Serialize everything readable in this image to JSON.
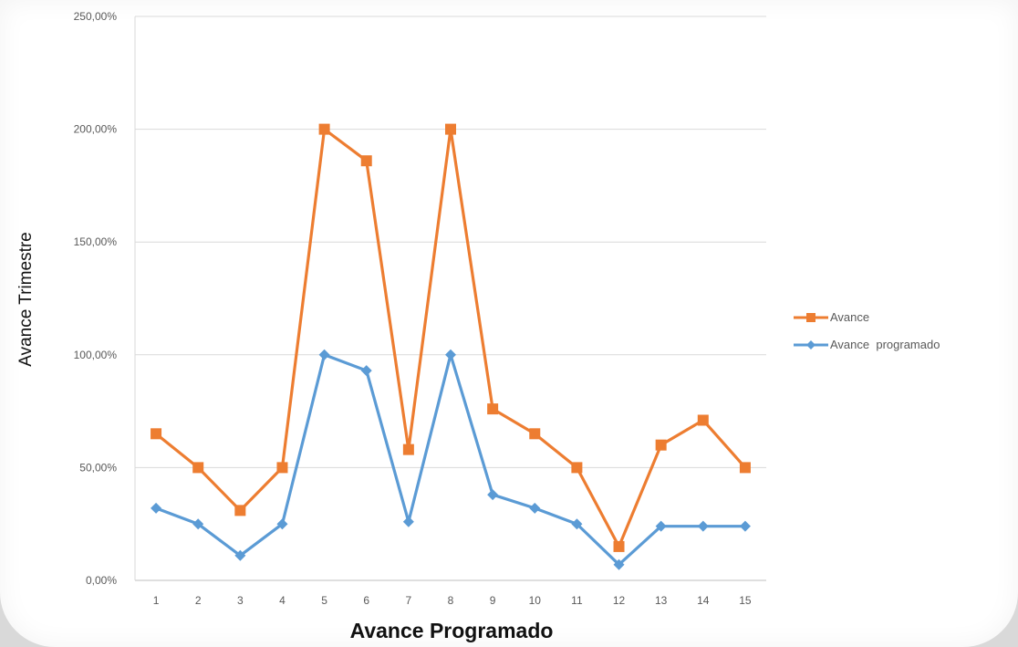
{
  "chart_data": {
    "type": "line",
    "xlabel": "Avance Programado",
    "ylabel": "Avance Trimestre",
    "categories": [
      "1",
      "2",
      "3",
      "4",
      "5",
      "6",
      "7",
      "8",
      "9",
      "10",
      "11",
      "12",
      "13",
      "14",
      "15"
    ],
    "yticks": [
      "0,00%",
      "50,00%",
      "100,00%",
      "150,00%",
      "200,00%",
      "250,00%"
    ],
    "ylim": [
      0,
      250
    ],
    "grid": true,
    "legend": "right",
    "series": [
      {
        "name": "Avance",
        "color": "#ed7d31",
        "marker": "square",
        "values": [
          65,
          50,
          31,
          50,
          200,
          186,
          58,
          200,
          76,
          65,
          50,
          15,
          60,
          71,
          50
        ]
      },
      {
        "name": "Avance  programado",
        "color": "#5b9bd5",
        "marker": "diamond",
        "values": [
          32,
          25,
          11,
          25,
          100,
          93,
          26,
          100,
          38,
          32,
          25,
          7,
          24,
          24,
          24
        ]
      }
    ]
  }
}
